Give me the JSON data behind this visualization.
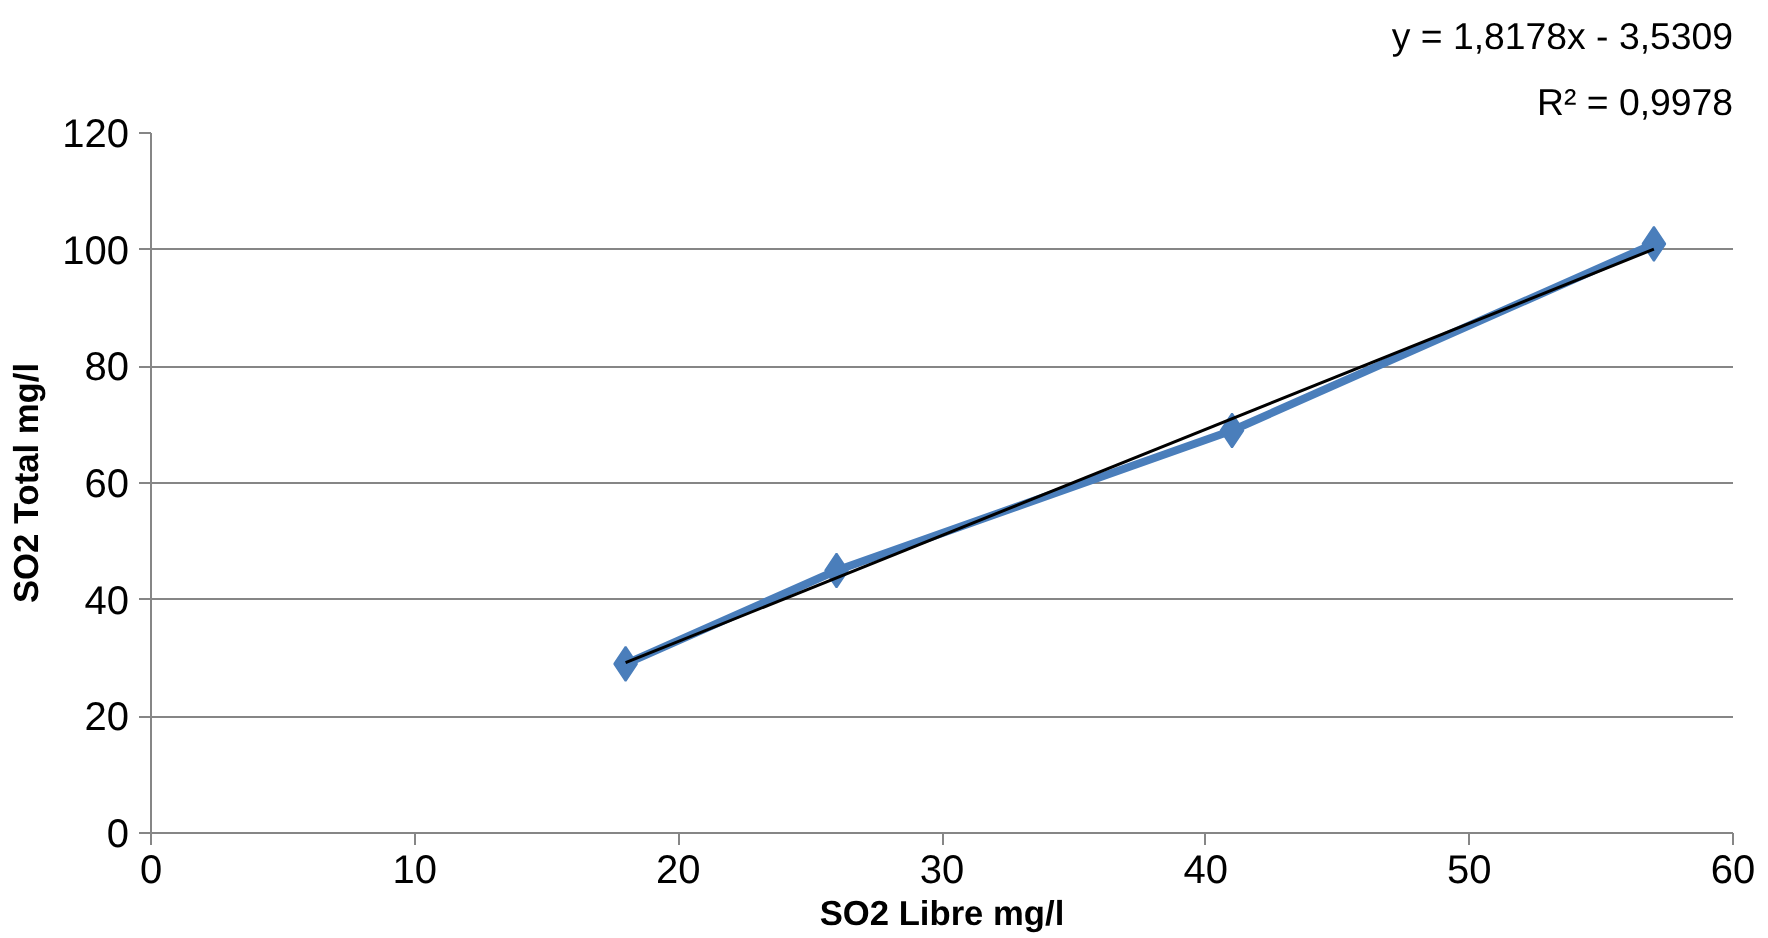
{
  "chart_data": {
    "type": "line",
    "xlabel": "SO2 Libre mg/l",
    "ylabel": "SO2 Total mg/l",
    "xlim": [
      0,
      60
    ],
    "xticks": [
      0,
      10,
      20,
      30,
      40,
      50,
      60
    ],
    "ylim": [
      0,
      120
    ],
    "yticks": [
      0,
      20,
      40,
      60,
      80,
      100,
      120
    ],
    "grid": "y",
    "marker": "diamond",
    "line_style": "solid",
    "annotations": [
      "y = 1,8178x - 3,5309",
      "R² = 0,9978"
    ],
    "series": [
      {
        "color": "#4a7ebb",
        "x": [
          18,
          26,
          41,
          57
        ],
        "values": [
          29,
          45,
          69,
          101
        ]
      },
      {
        "type": "line",
        "marker": "none",
        "color": "#000000",
        "x": [
          18,
          57
        ],
        "values": [
          29.2,
          100.1
        ]
      }
    ]
  }
}
